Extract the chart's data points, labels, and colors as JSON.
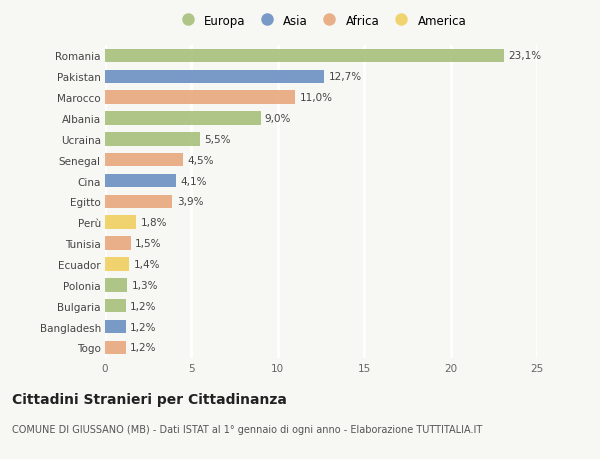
{
  "countries": [
    "Romania",
    "Pakistan",
    "Marocco",
    "Albania",
    "Ucraina",
    "Senegal",
    "Cina",
    "Egitto",
    "Perù",
    "Tunisia",
    "Ecuador",
    "Polonia",
    "Bulgaria",
    "Bangladesh",
    "Togo"
  ],
  "values": [
    23.1,
    12.7,
    11.0,
    9.0,
    5.5,
    4.5,
    4.1,
    3.9,
    1.8,
    1.5,
    1.4,
    1.3,
    1.2,
    1.2,
    1.2
  ],
  "labels": [
    "23,1%",
    "12,7%",
    "11,0%",
    "9,0%",
    "5,5%",
    "4,5%",
    "4,1%",
    "3,9%",
    "1,8%",
    "1,5%",
    "1,4%",
    "1,3%",
    "1,2%",
    "1,2%",
    "1,2%"
  ],
  "continents": [
    "Europa",
    "Asia",
    "Africa",
    "Europa",
    "Europa",
    "Africa",
    "Asia",
    "Africa",
    "America",
    "Africa",
    "America",
    "Europa",
    "Europa",
    "Asia",
    "Africa"
  ],
  "continent_colors": {
    "Europa": "#a8c07c",
    "Asia": "#6b8fc2",
    "Africa": "#e8a87c",
    "America": "#f0d060"
  },
  "legend_order": [
    "Europa",
    "Asia",
    "Africa",
    "America"
  ],
  "title": "Cittadini Stranieri per Cittadinanza",
  "subtitle": "COMUNE DI GIUSSANO (MB) - Dati ISTAT al 1° gennaio di ogni anno - Elaborazione TUTTITALIA.IT",
  "xlim": [
    0,
    25
  ],
  "xticks": [
    0,
    5,
    10,
    15,
    20,
    25
  ],
  "background_color": "#f7f7f3",
  "grid_color": "#ffffff",
  "bar_height": 0.65,
  "label_fontsize": 7.5,
  "tick_fontsize": 7.5,
  "title_fontsize": 10,
  "subtitle_fontsize": 7
}
